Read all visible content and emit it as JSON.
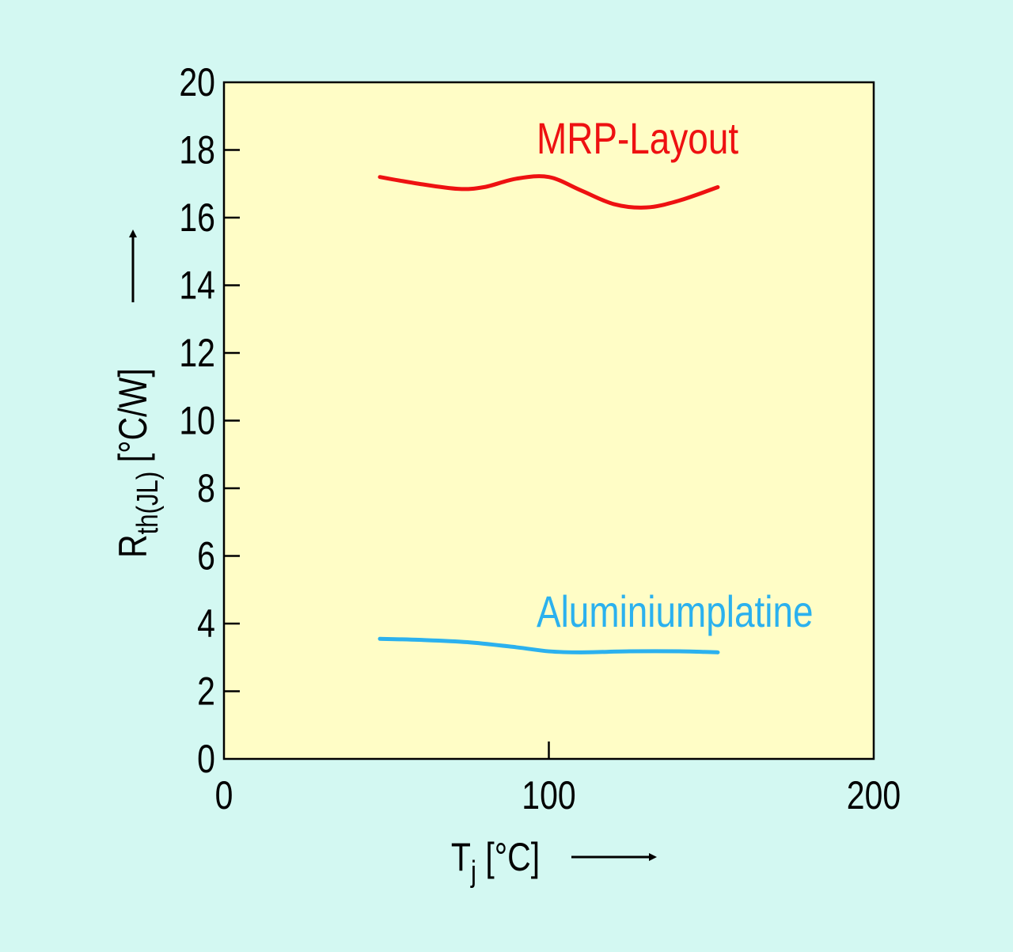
{
  "chart_data": {
    "type": "line",
    "xlabel": {
      "main": "T",
      "sub": "j",
      "unit": "[°C]"
    },
    "ylabel": {
      "main": "R",
      "sub": "th(JL)",
      "unit": "[°C/W]"
    },
    "xlim": [
      0,
      200
    ],
    "ylim": [
      0,
      20
    ],
    "xticks": [
      0,
      100,
      200
    ],
    "xtick_labels": [
      "0",
      "100",
      "200"
    ],
    "yticks": [
      0,
      2,
      4,
      6,
      8,
      10,
      12,
      14,
      16,
      18,
      20
    ],
    "ytick_labels": [
      "0",
      "2",
      "4",
      "6",
      "8",
      "10",
      "12",
      "14",
      "16",
      "18",
      "20"
    ],
    "grid": false,
    "plot_background": "#fffdc6",
    "page_background": "#d3f8f2",
    "series": [
      {
        "name": "MRP-Layout",
        "color": "#ee1111",
        "x": [
          48,
          60,
          72,
          80,
          90,
          100,
          110,
          120,
          130,
          140,
          152
        ],
        "y": [
          17.2,
          17.0,
          16.85,
          16.9,
          17.15,
          17.2,
          16.8,
          16.4,
          16.3,
          16.5,
          16.9
        ]
      },
      {
        "name": "Aluminiumplatine",
        "color": "#2bb1ee",
        "x": [
          48,
          60,
          75,
          90,
          100,
          110,
          125,
          140,
          152
        ],
        "y": [
          3.55,
          3.52,
          3.45,
          3.3,
          3.18,
          3.15,
          3.18,
          3.18,
          3.15
        ]
      }
    ]
  }
}
